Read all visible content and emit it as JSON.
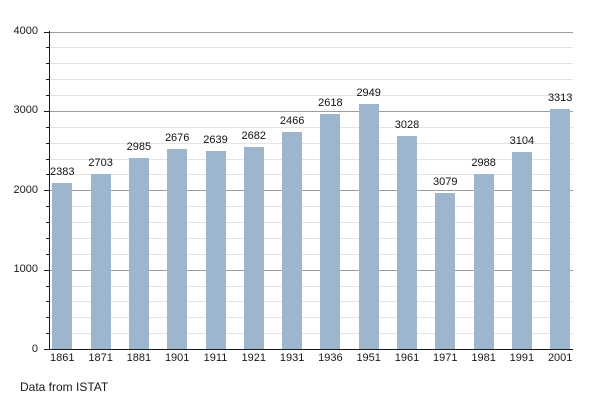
{
  "footer": {
    "text": "Data from ISTAT"
  },
  "colors": {
    "bar_fill": "#9db5cd",
    "grid_major": "#9e9e9e",
    "grid_minor": "#e4e4e4",
    "axis": "#1a1a1a",
    "text": "#111111"
  },
  "chart_data": {
    "type": "bar",
    "title": "",
    "xlabel": "",
    "ylabel": "",
    "categories": [
      "1861",
      "1871",
      "1881",
      "1901",
      "1911",
      "1921",
      "1931",
      "1936",
      "1951",
      "1961",
      "1971",
      "1981",
      "1991",
      "2001"
    ],
    "values": [
      2383,
      2703,
      2985,
      2676,
      2639,
      2682,
      2466,
      2618,
      2949,
      3028,
      3079,
      2988,
      3104,
      3313
    ],
    "bar_drawn_values": [
      2095,
      2210,
      2410,
      2525,
      2500,
      2550,
      2730,
      2965,
      3090,
      2680,
      1960,
      2200,
      2485,
      3020
    ],
    "ylim": [
      0,
      4000
    ],
    "ytick_major_step": 1000,
    "ytick_minor_step": 200,
    "ytick_labels": [
      "0",
      "1000",
      "2000",
      "3000",
      "4000"
    ],
    "grid": "on",
    "legend_position": "none",
    "source_note": "Data from ISTAT"
  }
}
